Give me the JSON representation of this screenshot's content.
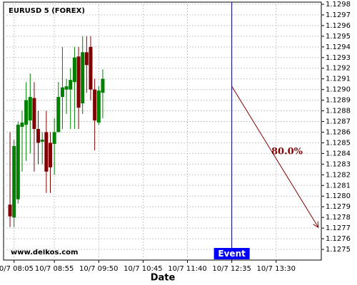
{
  "chart_data": {
    "type": "candlestick",
    "title": "EURUSD 5 (FOREX)",
    "watermark": "www.delkos.com",
    "xlabel": "Date",
    "up_color": "#008000",
    "down_color": "#800000",
    "grid": true,
    "x": [
      "10/7 08:00",
      "10/7 08:05",
      "10/7 08:10",
      "10/7 08:15",
      "10/7 08:20",
      "10/7 08:25",
      "10/7 08:30",
      "10/7 08:35",
      "10/7 08:40",
      "10/7 08:45",
      "10/7 08:50",
      "10/7 08:55",
      "10/7 09:00",
      "10/7 09:05",
      "10/7 09:10",
      "10/7 09:15",
      "10/7 09:20",
      "10/7 09:25",
      "10/7 09:30",
      "10/7 09:35",
      "10/7 09:40",
      "10/7 09:45",
      "10/7 09:50",
      "10/7 09:55"
    ],
    "open": [
      1.12792,
      1.1278,
      1.12797,
      1.12865,
      1.12867,
      1.12871,
      1.12892,
      1.12863,
      1.12851,
      1.1286,
      1.1285,
      1.12849,
      1.1286,
      1.12893,
      1.129,
      1.129,
      1.12907,
      1.12931,
      1.12887,
      1.12935,
      1.1294,
      1.129,
      1.12869,
      1.12897
    ],
    "high": [
      1.1286,
      1.12853,
      1.1287,
      1.1288,
      1.12907,
      1.12915,
      1.12907,
      1.1288,
      1.1286,
      1.1288,
      1.1286,
      1.12873,
      1.12907,
      1.1294,
      1.1291,
      1.1292,
      1.1294,
      1.1294,
      1.1295,
      1.1295,
      1.1295,
      1.1291,
      1.12903,
      1.12919
    ],
    "low": [
      1.12771,
      1.12771,
      1.12793,
      1.12823,
      1.12833,
      1.1284,
      1.12823,
      1.1283,
      1.1283,
      1.12803,
      1.12803,
      1.1282,
      1.1286,
      1.12863,
      1.12877,
      1.12863,
      1.12863,
      1.12863,
      1.12877,
      1.12897,
      1.1289,
      1.12843,
      1.12867,
      1.12873
    ],
    "close": [
      1.12781,
      1.12847,
      1.12867,
      1.12869,
      1.1289,
      1.12893,
      1.12863,
      1.1285,
      1.12853,
      1.12823,
      1.12827,
      1.1286,
      1.12893,
      1.12902,
      1.12903,
      1.12909,
      1.1293,
      1.12883,
      1.12935,
      1.12923,
      1.129,
      1.12871,
      1.12899,
      1.1291
    ],
    "xlim": [
      "10/7 07:52",
      "10/7 14:26"
    ],
    "xticks": [
      "10/7 08:05",
      "10/7 08:55",
      "10/7 09:50",
      "10/7 10:45",
      "10/7 11:40",
      "10/7 12:35",
      "10/7 13:30"
    ],
    "ylim": [
      1.1274,
      1.12982
    ],
    "yticks": [
      {
        "value": 1.1275,
        "label": "1.1275"
      },
      {
        "value": 1.1276,
        "label": "1.1276"
      },
      {
        "value": 1.1277,
        "label": "1.1277"
      },
      {
        "value": 1.1278,
        "label": "1.1278"
      },
      {
        "value": 1.1279,
        "label": "1.1279"
      },
      {
        "value": 1.128,
        "label": "1.1280"
      },
      {
        "value": 1.1281,
        "label": "1.1281"
      },
      {
        "value": 1.1282,
        "label": "1.1282"
      },
      {
        "value": 1.1283,
        "label": "1.1283"
      },
      {
        "value": 1.1284,
        "label": "1.1284"
      },
      {
        "value": 1.1285,
        "label": "1.1285"
      },
      {
        "value": 1.1286,
        "label": "1.1286"
      },
      {
        "value": 1.1287,
        "label": "1.1287"
      },
      {
        "value": 1.1288,
        "label": "1.1288"
      },
      {
        "value": 1.1289,
        "label": "1.1289"
      },
      {
        "value": 1.129,
        "label": "1.1290"
      },
      {
        "value": 1.1291,
        "label": "1.1291"
      },
      {
        "value": 1.1292,
        "label": "1.1292"
      },
      {
        "value": 1.1293,
        "label": "1.1293"
      },
      {
        "value": 1.1294,
        "label": "1.1294"
      },
      {
        "value": 1.1295,
        "label": "1.1295"
      },
      {
        "value": 1.1296,
        "label": "1.1296"
      },
      {
        "value": 1.1297,
        "label": "1.1297"
      },
      {
        "value": 1.1298,
        "label": "1.1298"
      }
    ],
    "event": {
      "label": "Event",
      "x": "10/7 12:35",
      "color": "#000080"
    },
    "projection": {
      "label": "80.0%",
      "color": "#800000",
      "from": {
        "x": "10/7 12:35",
        "y": 1.12903
      },
      "to": {
        "x": "10/7 14:22",
        "y": 1.12771
      }
    }
  }
}
